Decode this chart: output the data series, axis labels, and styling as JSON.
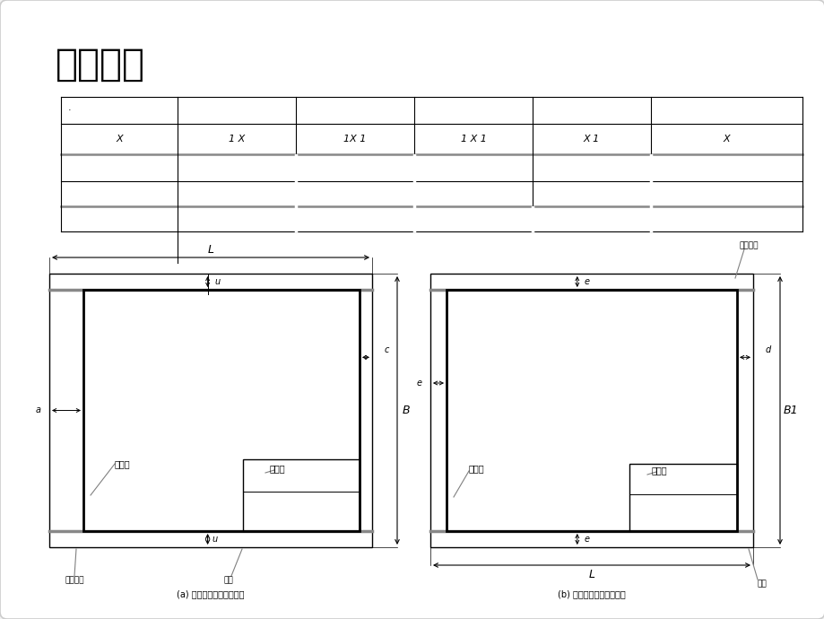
{
  "title": "幅面尺寸",
  "bg_color": "#f2f2f2",
  "white": "#ffffff",
  "black": "#000000",
  "gray": "#888888",
  "table_col_labels": [
    "X",
    "1 X",
    "1X 1",
    "1 X 1",
    "X 1",
    "X"
  ],
  "sub_caption_a": "(a) 带有装订边的图纸幅面",
  "sub_caption_b": "(b) 不带装订边的图纸幅面",
  "label_frame": "图框线",
  "label_title_block": "标题栏",
  "label_border": "纸边界线",
  "label_margin": "周边"
}
